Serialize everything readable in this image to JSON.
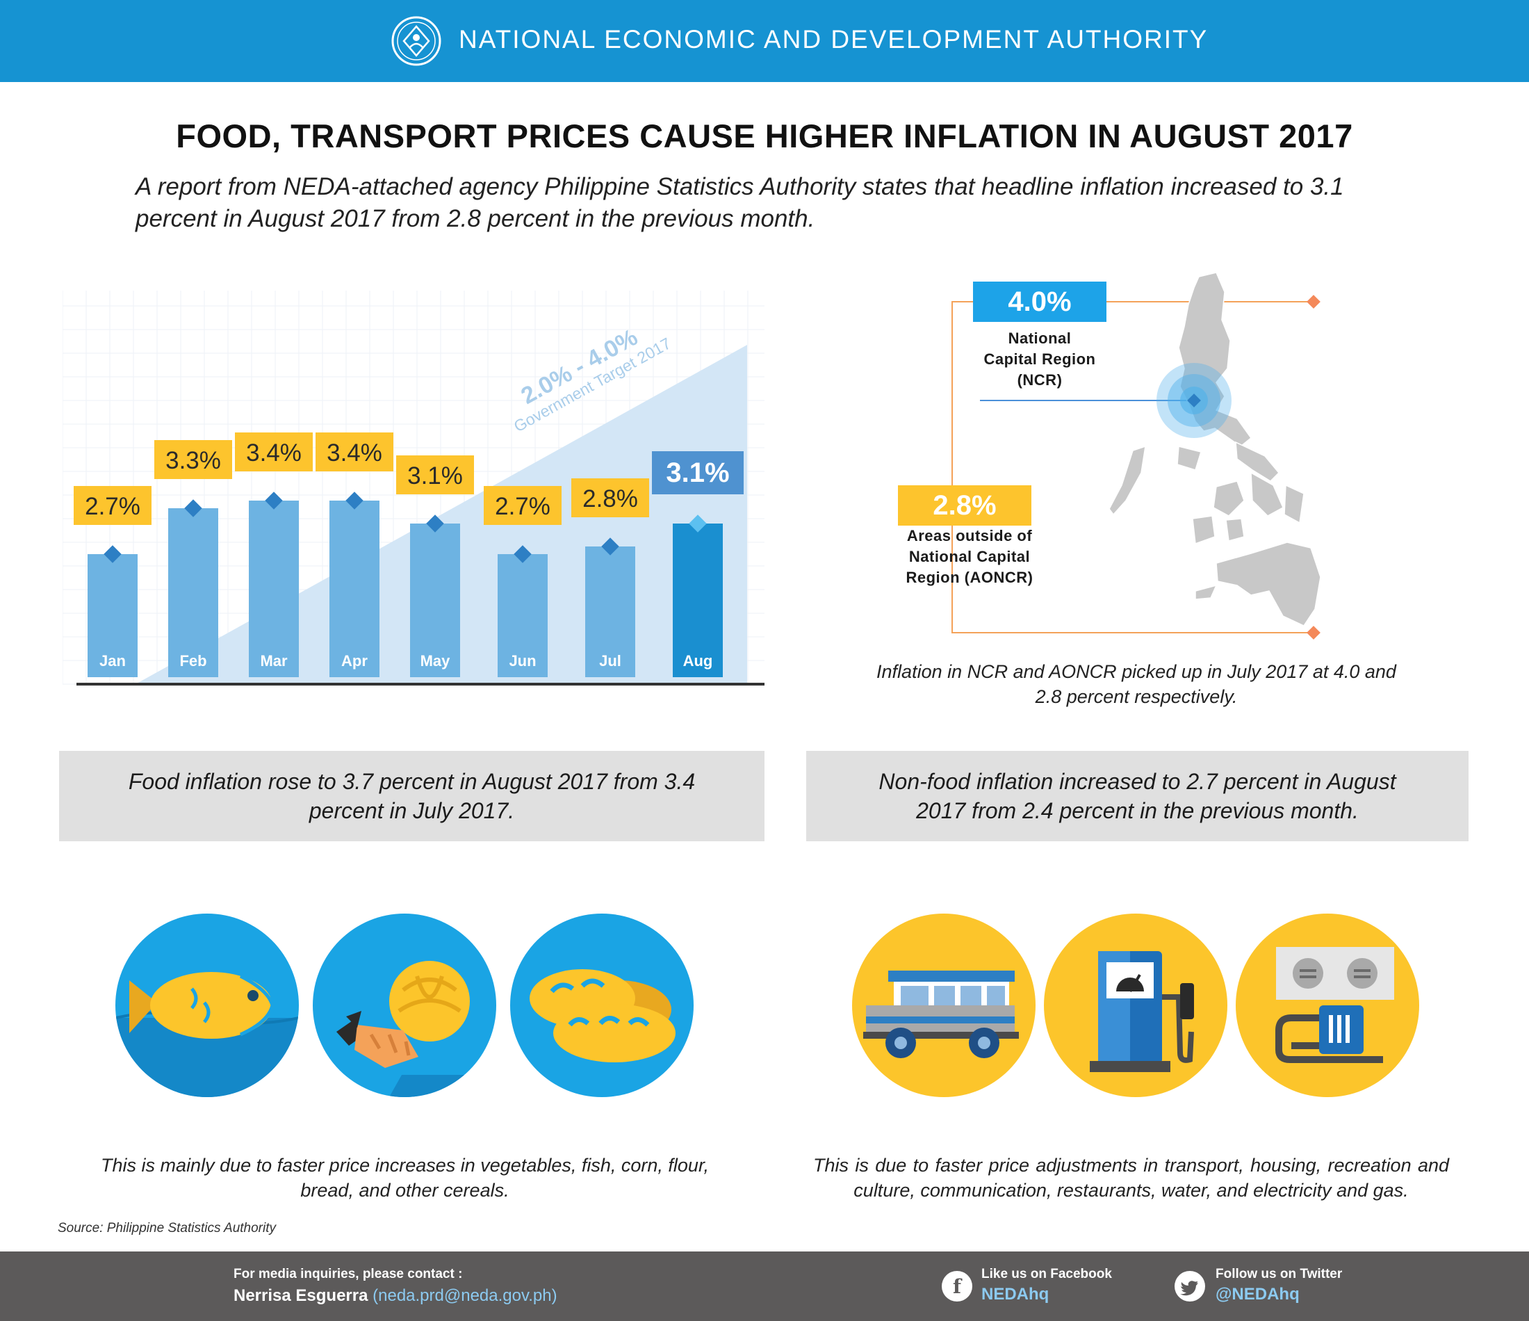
{
  "header": {
    "org_name": "NATIONAL ECONOMIC AND DEVELOPMENT AUTHORITY"
  },
  "title": "FOOD, TRANSPORT PRICES CAUSE HIGHER INFLATION IN AUGUST 2017",
  "intro": "A report from NEDA-attached agency Philippine Statistics Authority states that headline inflation increased to 3.1 percent in August 2017 from 2.8 percent in the previous month.",
  "chart_data": {
    "type": "bar",
    "categories": [
      "Jan",
      "Feb",
      "Mar",
      "Apr",
      "May",
      "Jun",
      "Jul",
      "Aug"
    ],
    "values": [
      2.7,
      3.3,
      3.4,
      3.4,
      3.1,
      2.7,
      2.8,
      3.1
    ],
    "labels": [
      "2.7%",
      "3.3%",
      "3.4%",
      "3.4%",
      "3.1%",
      "2.7%",
      "2.8%",
      "3.1%"
    ],
    "highlight": "Aug",
    "target_band": {
      "range": "2.0% - 4.0%",
      "text": "Government Target 2017"
    },
    "colors": {
      "bar": "#6db3e2",
      "highlight": "#1a8fd0",
      "label_box": "#fdc42d",
      "highlight_box": "#4f92d0",
      "band": "#d3e6f6",
      "marker": "#2d7fc4"
    }
  },
  "regions": {
    "ncr": {
      "value": "4.0%",
      "label": [
        "National",
        "Capital Region",
        "(NCR)"
      ],
      "color": "#1da3e8"
    },
    "aoncr": {
      "value": "2.8%",
      "label": [
        "Areas outside of",
        "National Capital",
        "Region (AONCR)"
      ],
      "color": "#fdc42d"
    },
    "note": "Inflation in NCR and AONCR picked up in July 2017 at 4.0 and 2.8 percent respectively."
  },
  "food": {
    "summary": "Food inflation rose to 3.7 percent in August 2017 from 3.4 percent in July 2017.",
    "description": "This is mainly due to faster price increases in vegetables, fish, corn, flour, bread, and other cereals.",
    "icons": [
      "fish-icon",
      "vegetables-icon",
      "bread-icon"
    ]
  },
  "nonfood": {
    "summary": "Non-food inflation increased to 2.7 percent in August 2017 from 2.4 percent in the previous month.",
    "description": "This is due to faster price adjustments in transport, housing, recreation and culture, communication, restaurants, water, and electricity and gas.",
    "icons": [
      "jeepney-icon",
      "fuel-pump-icon",
      "electric-outlet-icon"
    ]
  },
  "source": "Source: Philippine Statistics Authority",
  "footer": {
    "contact_label": "For media inquiries, please contact :",
    "contact_name": "Nerrisa Esguerra",
    "contact_email": "(neda.prd@neda.gov.ph)",
    "facebook_label": "Like us on Facebook",
    "facebook_handle": "NEDAhq",
    "twitter_label": "Follow us on Twitter",
    "twitter_handle": "@NEDAhq"
  }
}
